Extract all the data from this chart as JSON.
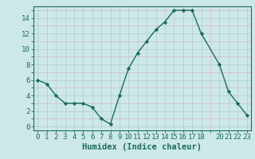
{
  "x": [
    0,
    1,
    2,
    3,
    4,
    5,
    6,
    7,
    8,
    9,
    10,
    11,
    12,
    13,
    14,
    15,
    16,
    17,
    18,
    20,
    21,
    22,
    23
  ],
  "y": [
    6,
    5.5,
    4,
    3,
    3,
    3,
    2.5,
    1,
    0.3,
    4,
    7.5,
    9.5,
    11,
    12.5,
    13.5,
    15,
    15,
    15,
    12,
    8,
    4.5,
    3,
    1.5
  ],
  "line_color": "#1a6b5a",
  "marker": "D",
  "marker_size": 2.2,
  "bg_color": "#cde8e8",
  "grid_color_major": "#b8d4d4",
  "grid_color_minor": "#c8e0e0",
  "xlabel": "Humidex (Indice chaleur)",
  "xlim": [
    -0.5,
    23.5
  ],
  "ylim": [
    -0.5,
    15.5
  ],
  "xticks": [
    0,
    1,
    2,
    3,
    4,
    5,
    6,
    7,
    8,
    9,
    10,
    11,
    12,
    13,
    14,
    15,
    16,
    17,
    18,
    20,
    21,
    22,
    23
  ],
  "yticks": [
    0,
    2,
    4,
    6,
    8,
    10,
    12,
    14
  ],
  "tick_label_fontsize": 6.5,
  "xlabel_fontsize": 7.5,
  "axis_color": "#1a6b5a",
  "linewidth": 1.0
}
